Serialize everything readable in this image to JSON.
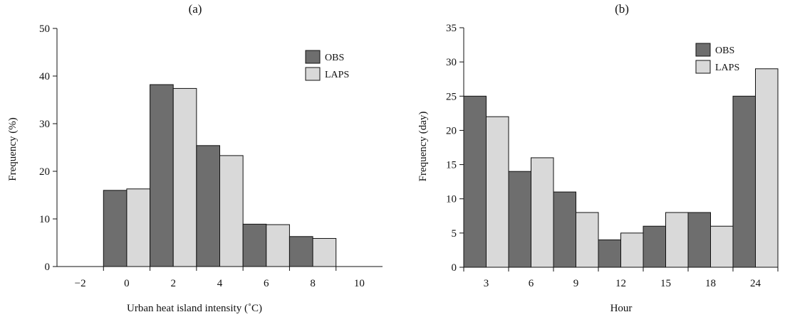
{
  "chart_data": [
    {
      "type": "bar",
      "title": "(a)",
      "xlabel": "Urban heat island intensity (˚C)",
      "ylabel": "Frequency (%)",
      "x_ticks": [
        "−2",
        "0",
        "2",
        "4",
        "6",
        "8",
        "10"
      ],
      "xlim": [
        -3,
        11
      ],
      "ylim": [
        0,
        50
      ],
      "y_ticks": [
        "0",
        "10",
        "20",
        "30",
        "40",
        "50"
      ],
      "categories": [
        "0",
        "2",
        "4",
        "6",
        "8"
      ],
      "legend": "top-right",
      "grid": false,
      "series": [
        {
          "name": "OBS",
          "color": "#6e6e6e",
          "values": [
            16,
            38.2,
            25.4,
            8.9,
            6.3
          ]
        },
        {
          "name": "LAPS",
          "color": "#d9d9d9",
          "values": [
            16.3,
            37.4,
            23.3,
            8.8,
            5.9
          ]
        }
      ]
    },
    {
      "type": "bar",
      "title": "(b)",
      "xlabel": "Hour",
      "ylabel": "Frequency (day)",
      "categories": [
        "3",
        "6",
        "9",
        "12",
        "15",
        "18",
        "24"
      ],
      "ylim": [
        0,
        35
      ],
      "y_ticks": [
        "0",
        "5",
        "10",
        "15",
        "20",
        "25",
        "30",
        "35"
      ],
      "legend": "top-right",
      "grid": false,
      "series": [
        {
          "name": "OBS",
          "color": "#6e6e6e",
          "values": [
            25,
            14,
            11,
            4,
            6,
            8,
            25
          ]
        },
        {
          "name": "LAPS",
          "color": "#d9d9d9",
          "values": [
            22,
            16,
            8,
            5,
            8,
            6,
            29
          ]
        }
      ]
    }
  ]
}
